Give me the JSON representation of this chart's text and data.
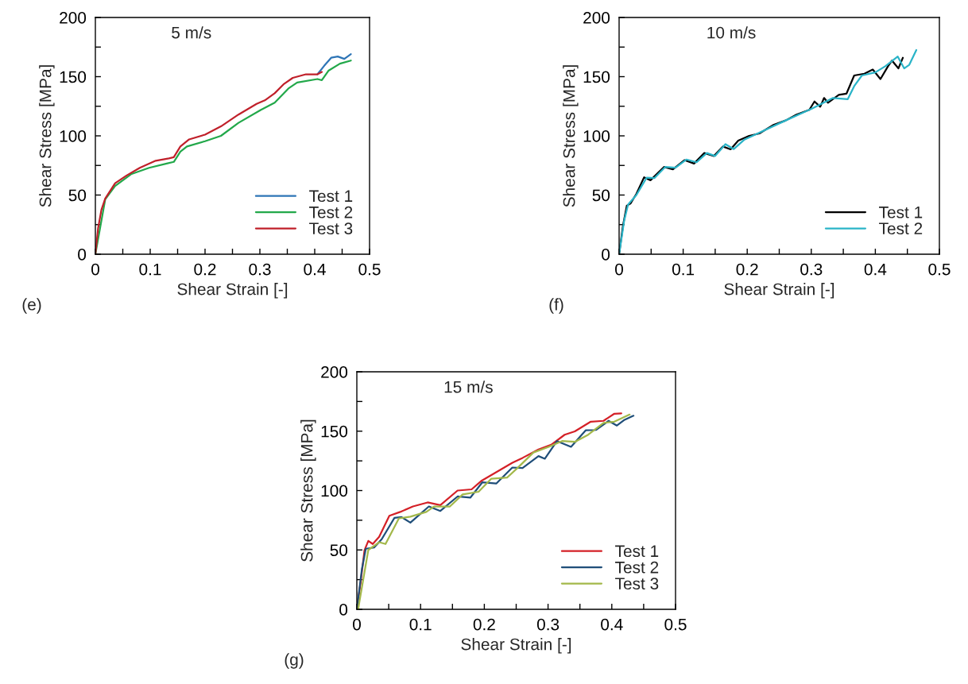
{
  "chart_data": [
    {
      "type": "line",
      "xlabel": "Shear Strain [-]",
      "ylabel": "Shear Stress [MPa]",
      "annotations": [
        "5 m/s",
        "(e)"
      ],
      "legend": "bottom right",
      "grid": false,
      "xlim": [
        0,
        0.5
      ],
      "ylim": [
        0,
        200
      ],
      "xticks": [
        0,
        {
          "value": 0.05,
          "label": null
        },
        0.1,
        {
          "value": 0.15,
          "label": null
        },
        0.2,
        {
          "value": 0.25,
          "label": null
        },
        0.3,
        {
          "value": 0.35,
          "label": null
        },
        0.4,
        {
          "value": 0.45,
          "label": null
        },
        0.5
      ],
      "yticks": [
        0,
        {
          "value": 25,
          "label": null
        },
        50,
        {
          "value": 75,
          "label": null
        },
        100,
        {
          "value": 125,
          "label": null
        },
        150,
        {
          "value": 175,
          "label": null
        },
        200
      ],
      "series": [
        {
          "name": "Test 1",
          "color": "#2e75b6",
          "x": [
            0.405,
            0.417,
            0.43,
            0.442,
            0.454,
            0.466
          ],
          "values": [
            152,
            159,
            166,
            167,
            165,
            169
          ]
        },
        {
          "name": "Test 2",
          "color": "#22a84a",
          "x": [
            0,
            0.018,
            0.036,
            0.065,
            0.098,
            0.13,
            0.143,
            0.155,
            0.167,
            0.2,
            0.229,
            0.261,
            0.302,
            0.327,
            0.352,
            0.368,
            0.405,
            0.413,
            0.425,
            0.446,
            0.466
          ],
          "values": [
            0,
            46.4,
            57.6,
            67.6,
            73,
            76.6,
            78,
            86.6,
            91,
            95.5,
            100,
            111,
            122,
            128,
            140,
            145,
            148,
            147,
            155,
            161,
            163.6
          ]
        },
        {
          "name": "Test 3",
          "color": "#c0202a",
          "x": [
            0,
            0.005,
            0.011,
            0.018,
            0.036,
            0.057,
            0.081,
            0.11,
            0.134,
            0.143,
            0.155,
            0.171,
            0.2,
            0.229,
            0.261,
            0.294,
            0.309,
            0.327,
            0.343,
            0.36,
            0.384,
            0.405,
            0.413
          ],
          "values": [
            0,
            22,
            37.5,
            47,
            60,
            66.5,
            73,
            79,
            81,
            82,
            91,
            97,
            101,
            108,
            118,
            127,
            130,
            136,
            143.5,
            149,
            152,
            152,
            154
          ]
        }
      ]
    },
    {
      "type": "line",
      "xlabel": "Shear Strain [-]",
      "ylabel": "Shear Stress [MPa]",
      "annotations": [
        "10 m/s",
        "(f)"
      ],
      "legend": "bottom right",
      "grid": false,
      "xlim": [
        0,
        0.5
      ],
      "ylim": [
        0,
        200
      ],
      "xticks": [
        0,
        {
          "value": 0.05,
          "label": null
        },
        0.1,
        {
          "value": 0.15,
          "label": null
        },
        0.2,
        {
          "value": 0.25,
          "label": null
        },
        0.3,
        {
          "value": 0.35,
          "label": null
        },
        0.4,
        {
          "value": 0.45,
          "label": null
        },
        0.5
      ],
      "yticks": [
        0,
        {
          "value": 25,
          "label": null
        },
        50,
        {
          "value": 75,
          "label": null
        },
        100,
        {
          "value": 125,
          "label": null
        },
        150,
        {
          "value": 175,
          "label": null
        },
        200
      ],
      "series": [
        {
          "name": "Test 1",
          "color": "#000000",
          "x": [
            0,
            0.006,
            0.012,
            0.018,
            0.027,
            0.039,
            0.049,
            0.07,
            0.084,
            0.102,
            0.117,
            0.133,
            0.148,
            0.162,
            0.174,
            0.186,
            0.203,
            0.219,
            0.24,
            0.26,
            0.277,
            0.297,
            0.305,
            0.314,
            0.32,
            0.326,
            0.343,
            0.355,
            0.367,
            0.383,
            0.396,
            0.408,
            0.42,
            0.426,
            0.436,
            0.443
          ],
          "values": [
            0,
            24,
            41,
            43,
            51,
            65,
            62.5,
            73.7,
            71.7,
            79.5,
            76.6,
            85.5,
            83,
            91,
            88.6,
            96,
            100,
            102,
            109,
            113,
            118,
            122,
            129,
            124.6,
            132,
            128,
            134.6,
            135.7,
            151,
            152.5,
            156,
            148,
            159,
            163.6,
            157,
            166
          ]
        },
        {
          "name": "Test 2",
          "color": "#2ab4c8",
          "x": [
            0,
            0.008,
            0.014,
            0.027,
            0.043,
            0.055,
            0.072,
            0.088,
            0.105,
            0.121,
            0.137,
            0.15,
            0.166,
            0.179,
            0.195,
            0.219,
            0.26,
            0.301,
            0.334,
            0.357,
            0.367,
            0.379,
            0.4,
            0.416,
            0.435,
            0.445,
            0.453,
            0.464
          ],
          "values": [
            0,
            28.6,
            42,
            50,
            64.7,
            64.3,
            73.7,
            73,
            80,
            77.7,
            85.5,
            83,
            93,
            88.8,
            96.6,
            102.7,
            113,
            123,
            132,
            131,
            142,
            151,
            153.6,
            159,
            167,
            157,
            160,
            172.5
          ]
        }
      ]
    },
    {
      "type": "line",
      "xlabel": "Shear Strain [-]",
      "ylabel": "Shear Stress [MPa]",
      "annotations": [
        "15 m/s",
        "(g)"
      ],
      "legend": "bottom right",
      "grid": false,
      "xlim": [
        0,
        0.5
      ],
      "ylim": [
        0,
        200
      ],
      "xticks": [
        0,
        {
          "value": 0.05,
          "label": null
        },
        0.1,
        {
          "value": 0.15,
          "label": null
        },
        0.2,
        {
          "value": 0.25,
          "label": null
        },
        0.3,
        {
          "value": 0.35,
          "label": null
        },
        0.4,
        {
          "value": 0.45,
          "label": null
        },
        0.5
      ],
      "yticks": [
        0,
        {
          "value": 25,
          "label": null
        },
        50,
        {
          "value": 75,
          "label": null
        },
        100,
        {
          "value": 125,
          "label": null
        },
        150,
        {
          "value": 175,
          "label": null
        },
        200
      ],
      "series": [
        {
          "name": "Test 1",
          "color": "#d42027",
          "x": [
            0,
            0.006,
            0.012,
            0.018,
            0.025,
            0.035,
            0.051,
            0.068,
            0.088,
            0.111,
            0.131,
            0.158,
            0.18,
            0.195,
            0.219,
            0.244,
            0.26,
            0.285,
            0.305,
            0.326,
            0.342,
            0.367,
            0.387,
            0.404,
            0.415
          ],
          "values": [
            0,
            23,
            49.8,
            57.6,
            55,
            61,
            78.8,
            82,
            86.6,
            90,
            87.7,
            100,
            101,
            108,
            115.6,
            123.4,
            127.5,
            134.6,
            138.6,
            147,
            149.8,
            158,
            158.7,
            164.7,
            165
          ]
        },
        {
          "name": "Test 2",
          "color": "#1f4e79",
          "x": [
            0,
            0.008,
            0.014,
            0.027,
            0.039,
            0.059,
            0.07,
            0.084,
            0.113,
            0.131,
            0.158,
            0.178,
            0.197,
            0.219,
            0.244,
            0.26,
            0.285,
            0.295,
            0.314,
            0.336,
            0.359,
            0.375,
            0.395,
            0.408,
            0.42,
            0.434
          ],
          "values": [
            0,
            34,
            51,
            52,
            59,
            77,
            77.7,
            73,
            86.6,
            82.8,
            95,
            94,
            107,
            106,
            119.4,
            119,
            129,
            126.8,
            141.7,
            136.8,
            150.7,
            151,
            158.7,
            154.7,
            159.6,
            163
          ]
        },
        {
          "name": "Test 3",
          "color": "#a3b84a",
          "x": [
            0.002,
            0.01,
            0.018,
            0.035,
            0.045,
            0.066,
            0.084,
            0.109,
            0.121,
            0.146,
            0.166,
            0.191,
            0.211,
            0.236,
            0.252,
            0.277,
            0.301,
            0.322,
            0.342,
            0.363,
            0.387,
            0.404,
            0.428
          ],
          "values": [
            0,
            25,
            50,
            56.5,
            55,
            76.6,
            78,
            82,
            86.6,
            86.6,
            96.7,
            99,
            110,
            111,
            119,
            132,
            136.8,
            141.7,
            141,
            147,
            157,
            158,
            164
          ]
        }
      ]
    }
  ]
}
